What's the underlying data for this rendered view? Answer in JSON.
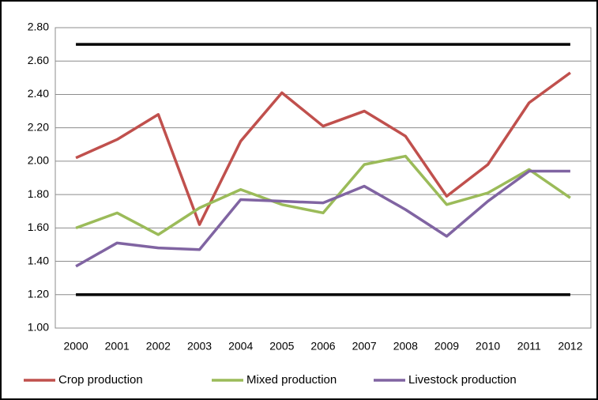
{
  "chart_data": {
    "type": "line",
    "categories": [
      "2000",
      "2001",
      "2002",
      "2003",
      "2004",
      "2005",
      "2006",
      "2007",
      "2008",
      "2009",
      "2010",
      "2011",
      "2012"
    ],
    "series": [
      {
        "name": "Crop production",
        "color": "#c0504d",
        "values": [
          2.02,
          2.13,
          2.28,
          1.62,
          2.12,
          2.41,
          2.21,
          2.3,
          2.15,
          1.79,
          1.98,
          2.35,
          2.53
        ]
      },
      {
        "name": "Mixed production",
        "color": "#9bbb59",
        "values": [
          1.6,
          1.69,
          1.56,
          1.72,
          1.83,
          1.74,
          1.69,
          1.98,
          2.03,
          1.74,
          1.81,
          1.95,
          1.78
        ]
      },
      {
        "name": "Livestock production",
        "color": "#8064a2",
        "values": [
          1.37,
          1.51,
          1.48,
          1.47,
          1.77,
          1.76,
          1.75,
          1.85,
          1.71,
          1.55,
          1.76,
          1.94,
          1.94
        ]
      }
    ],
    "reference_lines": [
      2.7,
      1.2
    ],
    "reference_color": "#000000",
    "ylim": [
      1,
      2.8
    ],
    "yticks": [
      {
        "value": 1,
        "label": "1.00"
      },
      {
        "value": 1.2,
        "label": "1.20"
      },
      {
        "value": 1.4,
        "label": "1.40"
      },
      {
        "value": 1.6,
        "label": "1.60"
      },
      {
        "value": 1.8,
        "label": "1.80"
      },
      {
        "value": 2,
        "label": "2.00"
      },
      {
        "value": 2.2,
        "label": "2.20"
      },
      {
        "value": 2.4,
        "label": "2.40"
      },
      {
        "value": 2.6,
        "label": "2.60"
      },
      {
        "value": 2.8,
        "label": "2.80"
      }
    ],
    "grid": true,
    "legend": "bottom"
  }
}
